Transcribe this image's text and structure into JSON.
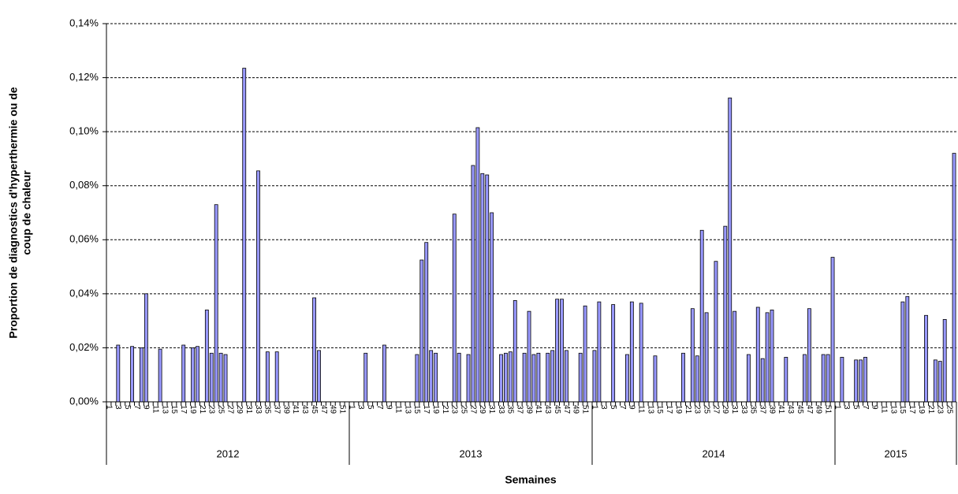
{
  "chart_data": {
    "type": "bar",
    "ylabel": [
      "Proportion de diagnostics d'hyperthermie ou de",
      "coup de chaleur"
    ],
    "xlabel": "Semaines",
    "color": "#9999ff",
    "grid": true,
    "ylim": [
      0,
      0.14
    ],
    "yticks": [
      {
        "value": 0,
        "label": "0,00%"
      },
      {
        "value": 0.02,
        "label": "0,02%"
      },
      {
        "value": 0.04,
        "label": "0,04%"
      },
      {
        "value": 0.06,
        "label": "0,06%"
      },
      {
        "value": 0.08,
        "label": "0,08%"
      },
      {
        "value": 0.1,
        "label": "0,10%"
      },
      {
        "value": 0.12,
        "label": "0,12%"
      },
      {
        "value": 0.14,
        "label": "0,14%"
      }
    ],
    "groups": [
      {
        "label": "2012",
        "size": 52
      },
      {
        "label": "2013",
        "size": 52
      },
      {
        "label": "2014",
        "size": 52
      },
      {
        "label": "2015",
        "size": 26
      }
    ],
    "categories": [
      "1",
      null,
      "3",
      null,
      "5",
      null,
      "7",
      null,
      "9",
      null,
      "11",
      null,
      "13",
      null,
      "15",
      null,
      "17",
      null,
      "19",
      null,
      "21",
      null,
      "23",
      null,
      "25",
      null,
      "27",
      null,
      "29",
      null,
      "31",
      null,
      "33",
      null,
      "35",
      null,
      "37",
      null,
      "39",
      null,
      "41",
      null,
      "43",
      null,
      "45",
      null,
      "47",
      null,
      "49",
      null,
      "51",
      null,
      "1",
      null,
      "3",
      null,
      "5",
      null,
      "7",
      null,
      "9",
      null,
      "11",
      null,
      "13",
      null,
      "15",
      null,
      "17",
      null,
      "19",
      null,
      "21",
      null,
      "23",
      null,
      "25",
      null,
      "27",
      null,
      "29",
      null,
      "31",
      null,
      "33",
      null,
      "35",
      null,
      "37",
      null,
      "39",
      null,
      "41",
      null,
      "43",
      null,
      "45",
      null,
      "47",
      null,
      "49",
      null,
      "51",
      null,
      "1",
      null,
      "3",
      null,
      "5",
      null,
      "7",
      null,
      "9",
      null,
      "11",
      null,
      "13",
      null,
      "15",
      null,
      "17",
      null,
      "19",
      null,
      "21",
      null,
      "23",
      null,
      "25",
      null,
      "27",
      null,
      "29",
      null,
      "31",
      null,
      "33",
      null,
      "35",
      null,
      "37",
      null,
      "39",
      null,
      "41",
      null,
      "43",
      null,
      "45",
      null,
      "47",
      null,
      "49",
      null,
      "51",
      null,
      "1",
      null,
      "3",
      null,
      "5",
      null,
      "7",
      null,
      "9",
      null,
      "11",
      null,
      "13",
      null,
      "15",
      null,
      "17",
      null,
      "19",
      null,
      "21",
      null,
      "23",
      null,
      "25",
      null
    ],
    "values": [
      0,
      0,
      0.021,
      0,
      0,
      0.0205,
      0,
      0.02,
      0.04,
      0,
      0,
      0.0195,
      0,
      0,
      0,
      0,
      0.021,
      0,
      0.02,
      0.0205,
      0,
      0.034,
      0.018,
      0.073,
      0.018,
      0.0175,
      0,
      0,
      0,
      0.1235,
      0,
      0,
      0.0855,
      0,
      0.0185,
      0,
      0.0185,
      0,
      0,
      0,
      0,
      0,
      0,
      0,
      0.0385,
      0.019,
      0,
      0,
      0,
      0,
      0,
      0,
      0,
      0,
      0,
      0.018,
      0,
      0,
      0,
      0.021,
      0,
      0,
      0,
      0,
      0,
      0,
      0.0175,
      0.0525,
      0.059,
      0.019,
      0.018,
      0,
      0,
      0,
      0.0695,
      0.018,
      0,
      0.0175,
      0.0875,
      0.1015,
      0.0845,
      0.084,
      0.07,
      0,
      0.0175,
      0.018,
      0.0185,
      0.0375,
      0,
      0.018,
      0.0335,
      0.0175,
      0.018,
      0,
      0.018,
      0.019,
      0.038,
      0.038,
      0.019,
      0,
      0,
      0.018,
      0.0355,
      0,
      0.019,
      0.037,
      0,
      0,
      0.036,
      0,
      0,
      0.0175,
      0.037,
      0,
      0.0365,
      0,
      0,
      0.017,
      0,
      0,
      0,
      0,
      0,
      0.018,
      0,
      0.0345,
      0.017,
      0.0635,
      0.033,
      0,
      0.052,
      0,
      0.065,
      0.1125,
      0.0335,
      0,
      0,
      0.0175,
      0,
      0.035,
      0.016,
      0.033,
      0.034,
      0,
      0,
      0.0165,
      0,
      0,
      0,
      0.0175,
      0.0345,
      0,
      0,
      0.0175,
      0.0175,
      0.0535,
      0,
      0.0165,
      0,
      0,
      0.0155,
      0.0155,
      0.0165,
      0,
      0,
      0,
      0,
      0,
      0,
      0,
      0.037,
      0.039,
      0,
      0,
      0,
      0.032,
      0,
      0.0155,
      0.015,
      0.0305,
      0,
      0.092
    ]
  }
}
